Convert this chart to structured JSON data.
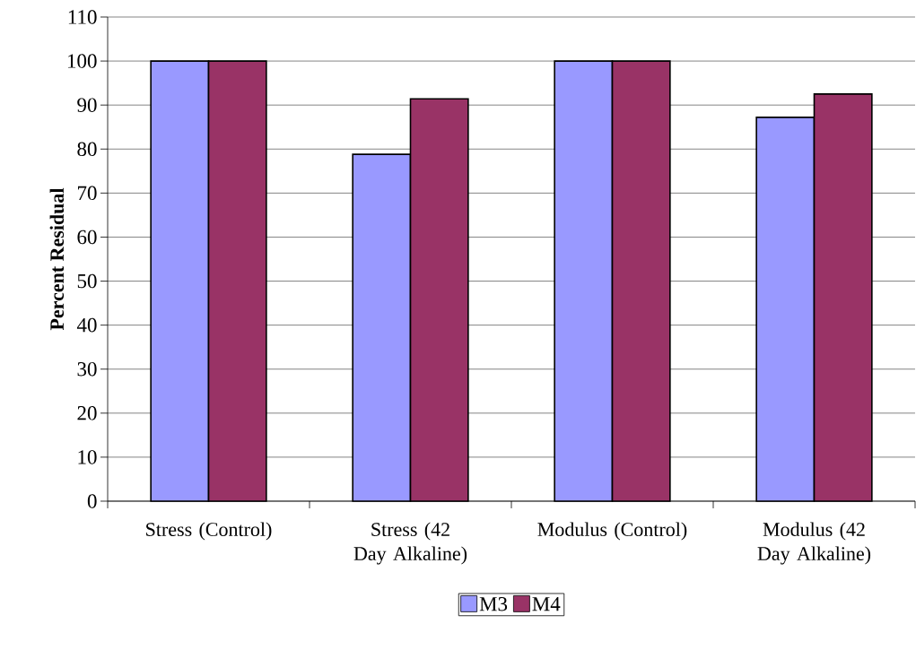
{
  "chart_data": {
    "type": "bar",
    "ylabel": "Percent Residual",
    "categories": [
      "Stress (Control)",
      "Stress (42 Day Alkaline)",
      "Modulus (Control)",
      "Modulus (42 Day Alkaline)"
    ],
    "series": [
      {
        "name": "M3",
        "color": "#9999ff",
        "values": [
          100,
          78.8,
          100,
          87.2
        ]
      },
      {
        "name": "M4",
        "color": "#993366",
        "values": [
          100,
          91.4,
          100,
          92.5
        ]
      }
    ],
    "ylim": [
      0,
      110
    ],
    "yticks": [
      0,
      10,
      20,
      30,
      40,
      50,
      60,
      70,
      80,
      90,
      100,
      110
    ],
    "grid": "y",
    "legend": "bottom"
  }
}
